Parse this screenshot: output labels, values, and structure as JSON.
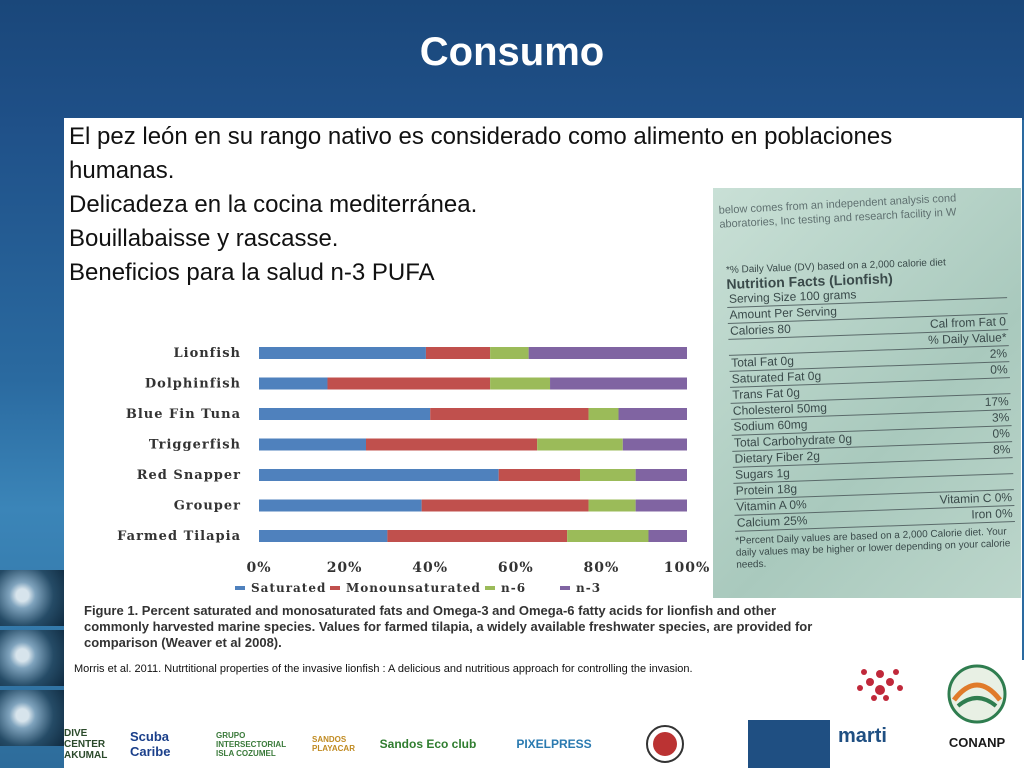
{
  "slide": {
    "title": "Consumo",
    "lines": [
      "El pez león en su rango nativo es considerado como alimento en poblaciones",
      "humanas.",
      "Delicadeza en la cocina mediterránea.",
      "Bouillabaisse y rascasse.",
      "",
      "Beneficios para la salud  n-3 PUFA"
    ],
    "citation": "Morris et  al. 2011. Nutrtitional properties of the invasive lionfish : A delicious and nutritious approach for controlling the invasion."
  },
  "nutrition_label": {
    "header_lines": [
      "below comes from an independent analysis cond",
      "aboratories, Inc testing and research facility in W"
    ],
    "dv_note": "*% Daily Value (DV) based on a 2,000 calorie diet",
    "title": "Nutrition Facts (Lionfish)",
    "rows": [
      [
        "Serving Size  100 grams",
        ""
      ],
      [
        "Amount Per Serving",
        ""
      ],
      [
        "Calories 80",
        "Cal from Fat 0"
      ],
      [
        "",
        "% Daily Value*"
      ],
      [
        "Total Fat 0g",
        "2%"
      ],
      [
        "Saturated Fat 0g",
        "0%"
      ],
      [
        "Trans Fat 0g",
        ""
      ],
      [
        "Cholesterol 50mg",
        "17%"
      ],
      [
        "Sodium 60mg",
        "3%"
      ],
      [
        "Total Carbohydrate 0g",
        "0%"
      ],
      [
        "Dietary Fiber 2g",
        "8%"
      ],
      [
        "Sugars 1g",
        ""
      ],
      [
        "Protein 18g",
        ""
      ],
      [
        "Vitamin A      0%",
        "Vitamin C    0%"
      ],
      [
        "Calcium       25%",
        "Iron  0%"
      ]
    ],
    "footnote": "*Percent Daily values are based on a 2,000 Calorie diet. Your daily values may be higher or lower depending on your calorie needs."
  },
  "logos": [
    "DIVE CENTER AKUMAL",
    "Scuba Caribe",
    "GRUPO INTERSECTORIAL ISLA COZUMEL",
    "SANDOS PLAYACAR",
    "Sandos Eco club",
    "PIXELPRESS",
    "",
    "marti",
    "CONANP"
  ],
  "chart_data": {
    "type": "bar",
    "stacked": true,
    "orientation": "horizontal",
    "categories": [
      "Lionfish",
      "Dolphinfish",
      "Blue Fin Tuna",
      "Triggerfish",
      "Red Snapper",
      "Grouper",
      "Farmed Tilapia"
    ],
    "series": [
      {
        "name": "Saturated",
        "color": "#4f81bd",
        "values": [
          39,
          16,
          40,
          25,
          56,
          38,
          30
        ]
      },
      {
        "name": "Monounsaturated",
        "color": "#c0504d",
        "values": [
          15,
          38,
          37,
          40,
          19,
          39,
          42
        ]
      },
      {
        "name": "n-6",
        "color": "#9bbb59",
        "values": [
          9,
          14,
          7,
          20,
          13,
          11,
          19
        ]
      },
      {
        "name": "n-3",
        "color": "#8064a2",
        "values": [
          37,
          32,
          16,
          15,
          12,
          12,
          9
        ]
      }
    ],
    "xlim": [
      0,
      100
    ],
    "xticks": [
      "0%",
      "20%",
      "40%",
      "60%",
      "80%",
      "100%"
    ],
    "legend_position": "bottom",
    "caption": "Figure 1.  Percent saturated and monosaturated fats and Omega-3 and Omega-6 fatty acids for lionfish and other commonly harvested marine species.  Values for farmed tilapia, a widely available freshwater species, are provided for comparison (Weaver et al 2008)."
  }
}
